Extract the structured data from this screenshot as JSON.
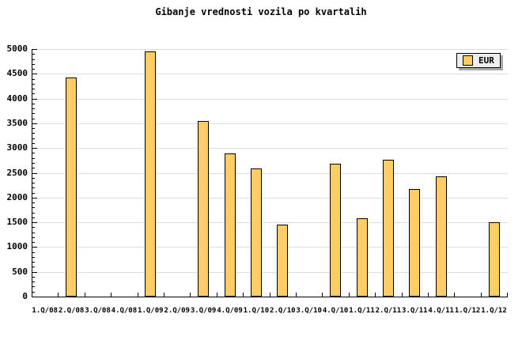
{
  "title": "Gibanje vrednosti vozila po kvartalih",
  "legend": {
    "label": "EUR",
    "swatch_color": "#FFCC66"
  },
  "colors": {
    "background": "#FFFFFF",
    "bar_fill": "#FFCC66",
    "bar_border": "#000000",
    "grid": "#DEDEDE",
    "axis": "#000000",
    "legend_bg": "#EEEEEE",
    "legend_shadow": "#A8A8A8",
    "text": "#000000"
  },
  "chart_data": {
    "type": "bar",
    "title": "Gibanje vrednosti vozila po kvartalih",
    "categories": [
      "1.Q/08",
      "2.Q/08",
      "3.Q/08",
      "4.Q/08",
      "1.Q/09",
      "2.Q/09",
      "3.Q/09",
      "4.Q/09",
      "1.Q/10",
      "2.Q/10",
      "3.Q/10",
      "4.Q/10",
      "1.Q/11",
      "2.Q/11",
      "3.Q/11",
      "4.Q/11",
      "1.Q/12",
      "1.Q/12"
    ],
    "values": [
      0,
      4420,
      0,
      0,
      4950,
      0,
      3550,
      2890,
      2580,
      1450,
      0,
      2680,
      1580,
      2760,
      2180,
      2430,
      0,
      1500
    ],
    "series_name": "EUR",
    "xlabel": "",
    "ylabel": "",
    "ylim": [
      0,
      5000
    ],
    "ytick_step": 500,
    "yminor_step": 100,
    "ytick_labels": [
      "0",
      "500",
      "1000",
      "1500",
      "2000",
      "2500",
      "3000",
      "3500",
      "4000",
      "4500",
      "5000"
    ],
    "grid": "horizontal",
    "legend_position": "top-right",
    "missing_values_shown_as": "no bar"
  }
}
